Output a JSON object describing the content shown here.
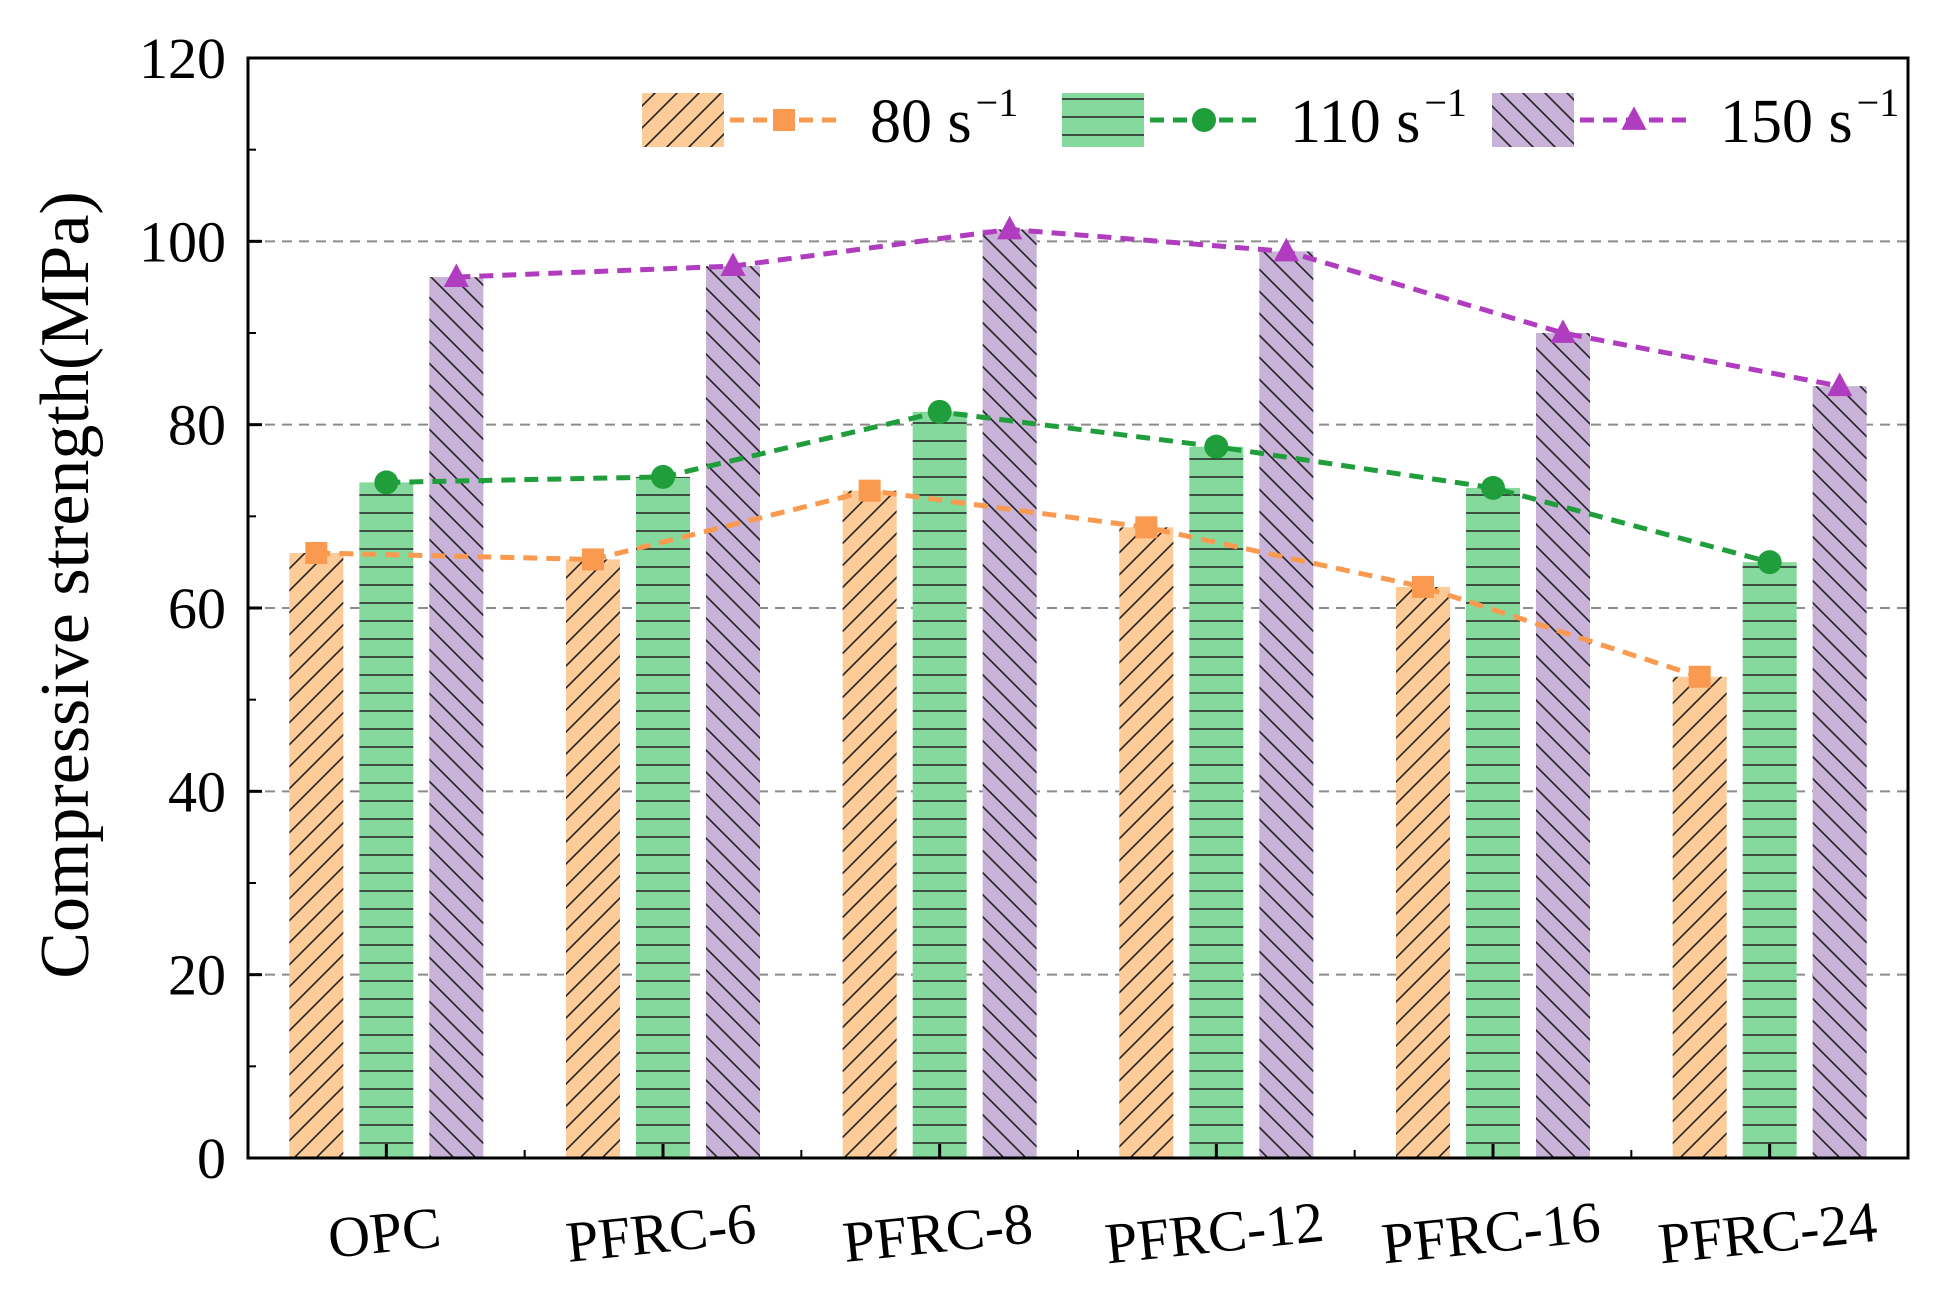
{
  "chart_data": {
    "type": "bar",
    "title": "",
    "xlabel": "",
    "ylabel": "Compressive strength(MPa)",
    "ylim": [
      0,
      120
    ],
    "yticks": [
      0,
      20,
      40,
      60,
      80,
      100,
      120
    ],
    "grid": "horizontal dashed at 20, 40, 60, 80, 100",
    "legend_position": "top-right",
    "categories": [
      "OPC",
      "PFRC-6",
      "PFRC-8",
      "PFRC-12",
      "PFRC-16",
      "PFRC-24"
    ],
    "series": [
      {
        "name": "80 s",
        "superscript": "−1",
        "values": [
          66.0,
          65.3,
          72.8,
          68.8,
          62.3,
          52.5
        ],
        "bar_color": "#fdcb98",
        "line_color": "#f99a50",
        "marker": "square",
        "hatch": "diagonal-up"
      },
      {
        "name": "110 s",
        "superscript": "−1",
        "values": [
          73.7,
          74.3,
          81.4,
          77.6,
          73.1,
          65.0
        ],
        "bar_color": "#86d99c",
        "line_color": "#1f9e3b",
        "marker": "circle",
        "hatch": "horizontal"
      },
      {
        "name": "150 s",
        "superscript": "−1",
        "values": [
          96.1,
          97.3,
          101.3,
          98.9,
          90.0,
          84.2
        ],
        "bar_color": "#c8b2d8",
        "line_color": "#b03cbf",
        "marker": "triangle",
        "hatch": "diagonal-down"
      }
    ]
  }
}
